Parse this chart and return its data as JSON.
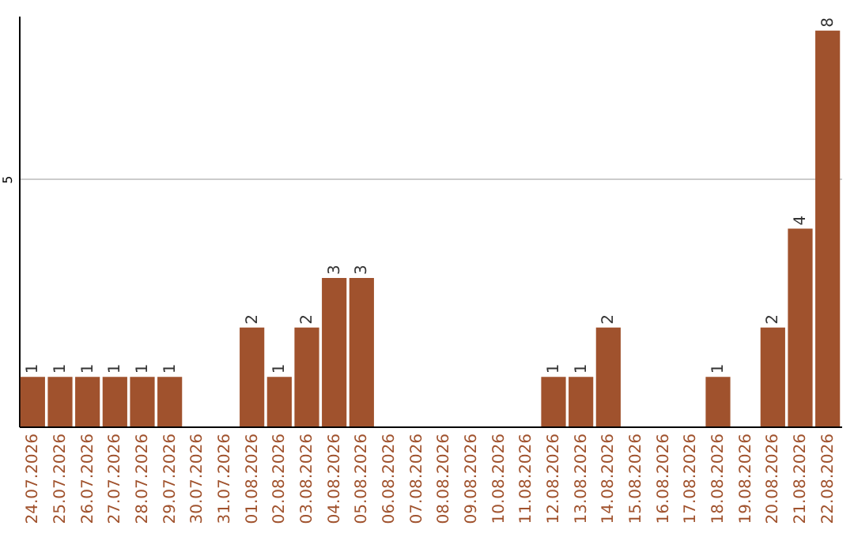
{
  "chart_data": {
    "type": "bar",
    "categories": [
      "24.07.2026",
      "25.07.2026",
      "26.07.2026",
      "27.07.2026",
      "28.07.2026",
      "29.07.2026",
      "30.07.2026",
      "31.07.2026",
      "01.08.2026",
      "02.08.2026",
      "03.08.2026",
      "04.08.2026",
      "05.08.2026",
      "06.08.2026",
      "07.08.2026",
      "08.08.2026",
      "09.08.2026",
      "10.08.2026",
      "11.08.2026",
      "12.08.2026",
      "13.08.2026",
      "14.08.2026",
      "15.08.2026",
      "16.08.2026",
      "17.08.2026",
      "18.08.2026",
      "19.08.2026",
      "20.08.2026",
      "21.08.2026",
      "22.08.2026"
    ],
    "values": [
      1,
      1,
      1,
      1,
      1,
      1,
      0,
      0,
      2,
      1,
      2,
      3,
      3,
      0,
      0,
      0,
      0,
      0,
      0,
      1,
      1,
      2,
      0,
      0,
      0,
      1,
      0,
      2,
      4,
      8
    ],
    "value_labels": [
      "1",
      "1",
      "1",
      "1",
      "1",
      "1",
      null,
      null,
      "2",
      "1",
      "2",
      "3",
      "3",
      null,
      null,
      null,
      null,
      null,
      null,
      "1",
      "1",
      "2",
      null,
      null,
      null,
      "1",
      null,
      "2",
      "4",
      "8"
    ],
    "color": "#a0522d",
    "ylim": [
      0,
      8.3
    ],
    "yticks": [
      5
    ],
    "grid": "y"
  }
}
